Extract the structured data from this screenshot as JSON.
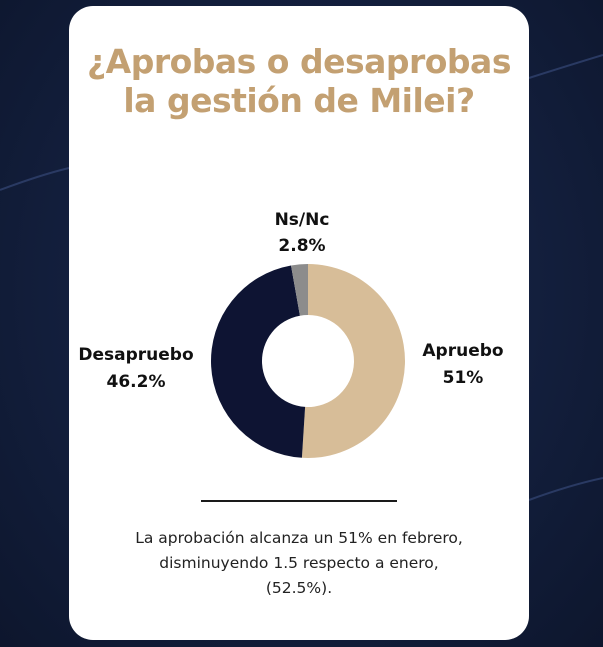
{
  "colors": {
    "background": "#131f3d",
    "card": "#ffffff",
    "title": "#c3a072",
    "apruebo": "#d7bd98",
    "desapruebo": "#0e1433",
    "nsnc": "#8c8c8c"
  },
  "title": "¿Aprobas o desaprobas la gestión de Milei?",
  "chart_data": {
    "type": "pie",
    "variant": "donut",
    "title": "¿Aprobas o desaprobas la gestión de Milei?",
    "slices": [
      {
        "name": "Apruebo",
        "label": "Apruebo",
        "value_label": "51%",
        "value": 51.0,
        "color": "#d7bd98"
      },
      {
        "name": "Desapruebo",
        "label": "Desapruebo",
        "value_label": "46.2%",
        "value": 46.2,
        "color": "#0e1433"
      },
      {
        "name": "Ns/Nc",
        "label": "Ns/Nc",
        "value_label": "2.8%",
        "value": 2.8,
        "color": "#8c8c8c"
      }
    ]
  },
  "note": {
    "line1": "La aprobación alcanza un 51% en febrero,",
    "line2": "disminuyendo 1.5 respecto a enero,",
    "line3": "(52.5%)."
  }
}
